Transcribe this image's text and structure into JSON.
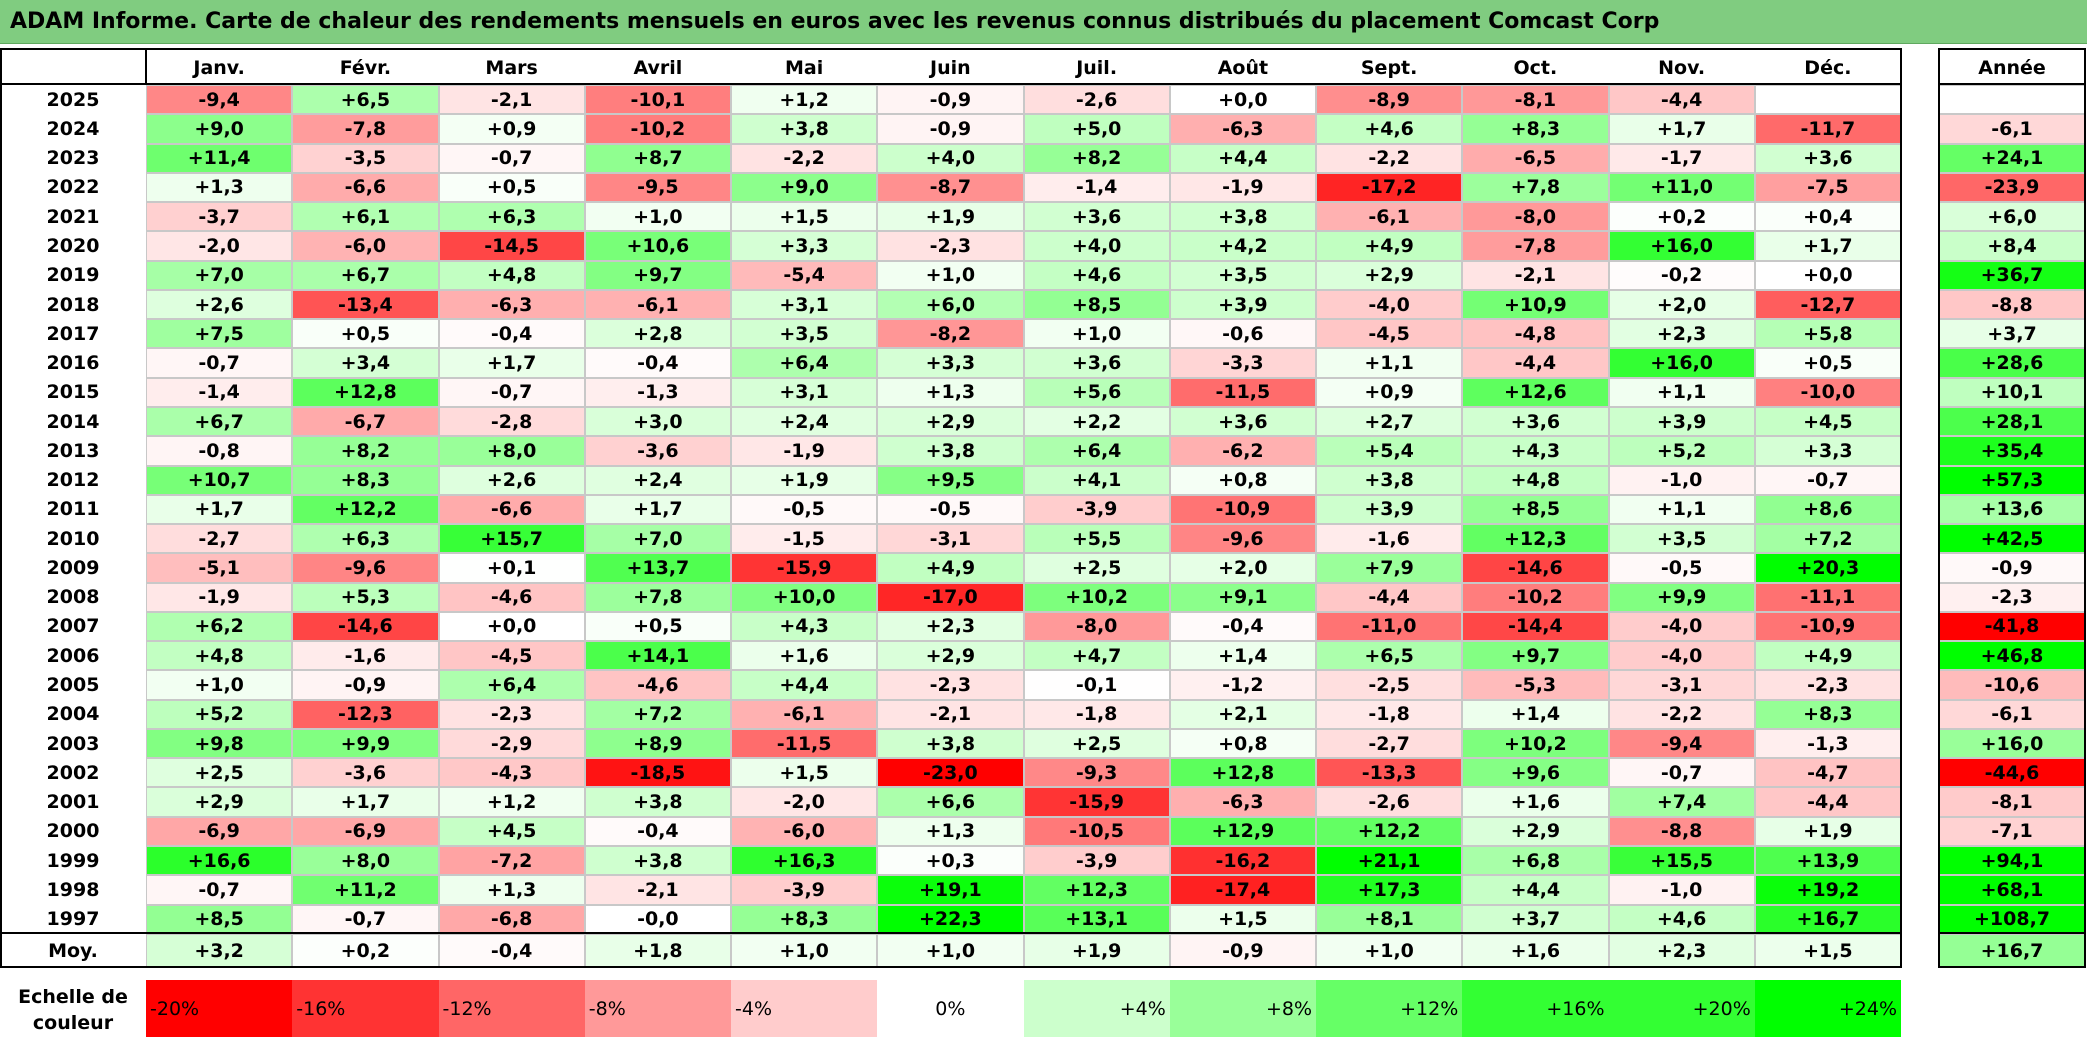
{
  "title": "ADAM Informe. Carte de chaleur des rendements mensuels en euros avec les revenus connus distribués du placement Comcast Corp",
  "chart_data": {
    "type": "heatmap",
    "columns": [
      "Janv.",
      "Févr.",
      "Mars",
      "Avril",
      "Mai",
      "Juin",
      "Juil.",
      "Août",
      "Sept.",
      "Oct.",
      "Nov.",
      "Déc."
    ],
    "year_header": "Année",
    "rows": [
      {
        "year": "2025",
        "months": [
          "-9,4",
          "+6,5",
          "-2,1",
          "-10,1",
          "+1,2",
          "-0,9",
          "-2,6",
          "+0,0",
          "-8,9",
          "-8,1",
          "-4,4",
          ""
        ],
        "annual": ""
      },
      {
        "year": "2024",
        "months": [
          "+9,0",
          "-7,8",
          "+0,9",
          "-10,2",
          "+3,8",
          "-0,9",
          "+5,0",
          "-6,3",
          "+4,6",
          "+8,3",
          "+1,7",
          "-11,7"
        ],
        "annual": "-6,1"
      },
      {
        "year": "2023",
        "months": [
          "+11,4",
          "-3,5",
          "-0,7",
          "+8,7",
          "-2,2",
          "+4,0",
          "+8,2",
          "+4,4",
          "-2,2",
          "-6,5",
          "-1,7",
          "+3,6"
        ],
        "annual": "+24,1"
      },
      {
        "year": "2022",
        "months": [
          "+1,3",
          "-6,6",
          "+0,5",
          "-9,5",
          "+9,0",
          "-8,7",
          "-1,4",
          "-1,9",
          "-17,2",
          "+7,8",
          "+11,0",
          "-7,5"
        ],
        "annual": "-23,9"
      },
      {
        "year": "2021",
        "months": [
          "-3,7",
          "+6,1",
          "+6,3",
          "+1,0",
          "+1,5",
          "+1,9",
          "+3,6",
          "+3,8",
          "-6,1",
          "-8,0",
          "+0,2",
          "+0,4"
        ],
        "annual": "+6,0"
      },
      {
        "year": "2020",
        "months": [
          "-2,0",
          "-6,0",
          "-14,5",
          "+10,6",
          "+3,3",
          "-2,3",
          "+4,0",
          "+4,2",
          "+4,9",
          "-7,8",
          "+16,0",
          "+1,7"
        ],
        "annual": "+8,4"
      },
      {
        "year": "2019",
        "months": [
          "+7,0",
          "+6,7",
          "+4,8",
          "+9,7",
          "-5,4",
          "+1,0",
          "+4,6",
          "+3,5",
          "+2,9",
          "-2,1",
          "-0,2",
          "+0,0"
        ],
        "annual": "+36,7"
      },
      {
        "year": "2018",
        "months": [
          "+2,6",
          "-13,4",
          "-6,3",
          "-6,1",
          "+3,1",
          "+6,0",
          "+8,5",
          "+3,9",
          "-4,0",
          "+10,9",
          "+2,0",
          "-12,7"
        ],
        "annual": "-8,8"
      },
      {
        "year": "2017",
        "months": [
          "+7,5",
          "+0,5",
          "-0,4",
          "+2,8",
          "+3,5",
          "-8,2",
          "+1,0",
          "-0,6",
          "-4,5",
          "-4,8",
          "+2,3",
          "+5,8"
        ],
        "annual": "+3,7"
      },
      {
        "year": "2016",
        "months": [
          "-0,7",
          "+3,4",
          "+1,7",
          "-0,4",
          "+6,4",
          "+3,3",
          "+3,6",
          "-3,3",
          "+1,1",
          "-4,4",
          "+16,0",
          "+0,5"
        ],
        "annual": "+28,6"
      },
      {
        "year": "2015",
        "months": [
          "-1,4",
          "+12,8",
          "-0,7",
          "-1,3",
          "+3,1",
          "+1,3",
          "+5,6",
          "-11,5",
          "+0,9",
          "+12,6",
          "+1,1",
          "-10,0"
        ],
        "annual": "+10,1"
      },
      {
        "year": "2014",
        "months": [
          "+6,7",
          "-6,7",
          "-2,8",
          "+3,0",
          "+2,4",
          "+2,9",
          "+2,2",
          "+3,6",
          "+2,7",
          "+3,6",
          "+3,9",
          "+4,5"
        ],
        "annual": "+28,1"
      },
      {
        "year": "2013",
        "months": [
          "-0,8",
          "+8,2",
          "+8,0",
          "-3,6",
          "-1,9",
          "+3,8",
          "+6,4",
          "-6,2",
          "+5,4",
          "+4,3",
          "+5,2",
          "+3,3"
        ],
        "annual": "+35,4"
      },
      {
        "year": "2012",
        "months": [
          "+10,7",
          "+8,3",
          "+2,6",
          "+2,4",
          "+1,9",
          "+9,5",
          "+4,1",
          "+0,8",
          "+3,8",
          "+4,8",
          "-1,0",
          "-0,7"
        ],
        "annual": "+57,3"
      },
      {
        "year": "2011",
        "months": [
          "+1,7",
          "+12,2",
          "-6,6",
          "+1,7",
          "-0,5",
          "-0,5",
          "-3,9",
          "-10,9",
          "+3,9",
          "+8,5",
          "+1,1",
          "+8,6"
        ],
        "annual": "+13,6"
      },
      {
        "year": "2010",
        "months": [
          "-2,7",
          "+6,3",
          "+15,7",
          "+7,0",
          "-1,5",
          "-3,1",
          "+5,5",
          "-9,6",
          "-1,6",
          "+12,3",
          "+3,5",
          "+7,2"
        ],
        "annual": "+42,5"
      },
      {
        "year": "2009",
        "months": [
          "-5,1",
          "-9,6",
          "+0,1",
          "+13,7",
          "-15,9",
          "+4,9",
          "+2,5",
          "+2,0",
          "+7,9",
          "-14,6",
          "-0,5",
          "+20,3"
        ],
        "annual": "-0,9"
      },
      {
        "year": "2008",
        "months": [
          "-1,9",
          "+5,3",
          "-4,6",
          "+7,8",
          "+10,0",
          "-17,0",
          "+10,2",
          "+9,1",
          "-4,4",
          "-10,2",
          "+9,9",
          "-11,1"
        ],
        "annual": "-2,3"
      },
      {
        "year": "2007",
        "months": [
          "+6,2",
          "-14,6",
          "+0,0",
          "+0,5",
          "+4,3",
          "+2,3",
          "-8,0",
          "-0,4",
          "-11,0",
          "-14,4",
          "-4,0",
          "-10,9"
        ],
        "annual": "-41,8"
      },
      {
        "year": "2006",
        "months": [
          "+4,8",
          "-1,6",
          "-4,5",
          "+14,1",
          "+1,6",
          "+2,9",
          "+4,7",
          "+1,4",
          "+6,5",
          "+9,7",
          "-4,0",
          "+4,9"
        ],
        "annual": "+46,8"
      },
      {
        "year": "2005",
        "months": [
          "+1,0",
          "-0,9",
          "+6,4",
          "-4,6",
          "+4,4",
          "-2,3",
          "-0,1",
          "-1,2",
          "-2,5",
          "-5,3",
          "-3,1",
          "-2,3"
        ],
        "annual": "-10,6"
      },
      {
        "year": "2004",
        "months": [
          "+5,2",
          "-12,3",
          "-2,3",
          "+7,2",
          "-6,1",
          "-2,1",
          "-1,8",
          "+2,1",
          "-1,8",
          "+1,4",
          "-2,2",
          "+8,3"
        ],
        "annual": "-6,1"
      },
      {
        "year": "2003",
        "months": [
          "+9,8",
          "+9,9",
          "-2,9",
          "+8,9",
          "-11,5",
          "+3,8",
          "+2,5",
          "+0,8",
          "-2,7",
          "+10,2",
          "-9,4",
          "-1,3"
        ],
        "annual": "+16,0"
      },
      {
        "year": "2002",
        "months": [
          "+2,5",
          "-3,6",
          "-4,3",
          "-18,5",
          "+1,5",
          "-23,0",
          "-9,3",
          "+12,8",
          "-13,3",
          "+9,6",
          "-0,7",
          "-4,7"
        ],
        "annual": "-44,6"
      },
      {
        "year": "2001",
        "months": [
          "+2,9",
          "+1,7",
          "+1,2",
          "+3,8",
          "-2,0",
          "+6,6",
          "-15,9",
          "-6,3",
          "-2,6",
          "+1,6",
          "+7,4",
          "-4,4"
        ],
        "annual": "-8,1"
      },
      {
        "year": "2000",
        "months": [
          "-6,9",
          "-6,9",
          "+4,5",
          "-0,4",
          "-6,0",
          "+1,3",
          "-10,5",
          "+12,9",
          "+12,2",
          "+2,9",
          "-8,8",
          "+1,9"
        ],
        "annual": "-7,1"
      },
      {
        "year": "1999",
        "months": [
          "+16,6",
          "+8,0",
          "-7,2",
          "+3,8",
          "+16,3",
          "+0,3",
          "-3,9",
          "-16,2",
          "+21,1",
          "+6,8",
          "+15,5",
          "+13,9"
        ],
        "annual": "+94,1"
      },
      {
        "year": "1998",
        "months": [
          "-0,7",
          "+11,2",
          "+1,3",
          "-2,1",
          "-3,9",
          "+19,1",
          "+12,3",
          "-17,4",
          "+17,3",
          "+4,4",
          "-1,0",
          "+19,2"
        ],
        "annual": "+68,1"
      },
      {
        "year": "1997",
        "months": [
          "+8,5",
          "-0,7",
          "-6,8",
          "-0,0",
          "+8,3",
          "+22,3",
          "+13,1",
          "+1,5",
          "+8,1",
          "+3,7",
          "+4,6",
          "+16,7"
        ],
        "annual": "+108,7"
      }
    ],
    "average": {
      "label": "Moy.",
      "months": [
        "+3,2",
        "+0,2",
        "-0,4",
        "+1,8",
        "+1,0",
        "+1,0",
        "+1,9",
        "-0,9",
        "+1,0",
        "+1,6",
        "+2,3",
        "+1,5"
      ],
      "annual": "+16,7"
    },
    "scale": {
      "label": "Echelle de couleur",
      "stops": [
        {
          "text": "-20%",
          "align": "left",
          "color": "#ff0000"
        },
        {
          "text": "-16%",
          "align": "left",
          "color": "#ff3333"
        },
        {
          "text": "-12%",
          "align": "left",
          "color": "#ff6666"
        },
        {
          "text": "-8%",
          "align": "left",
          "color": "#ff9999"
        },
        {
          "text": "-4%",
          "align": "left",
          "color": "#ffcccc"
        },
        {
          "text": "0%",
          "align": "center",
          "color": "#ffffff"
        },
        {
          "text": "+4%",
          "align": "right",
          "color": "#ccffcc"
        },
        {
          "text": "+8%",
          "align": "right",
          "color": "#99ff99"
        },
        {
          "text": "+12%",
          "align": "right",
          "color": "#66ff66"
        },
        {
          "text": "+16%",
          "align": "right",
          "color": "#33ff33"
        },
        {
          "text": "+20%",
          "align": "right",
          "color": "#33ff33"
        },
        {
          "text": "+24%",
          "align": "right",
          "color": "#00ff00"
        }
      ]
    },
    "colors": {
      "negative_max": "#ff0000",
      "neutral": "#ffffff",
      "positive_max": "#00ff00",
      "title_bar": "#80cc80"
    }
  }
}
